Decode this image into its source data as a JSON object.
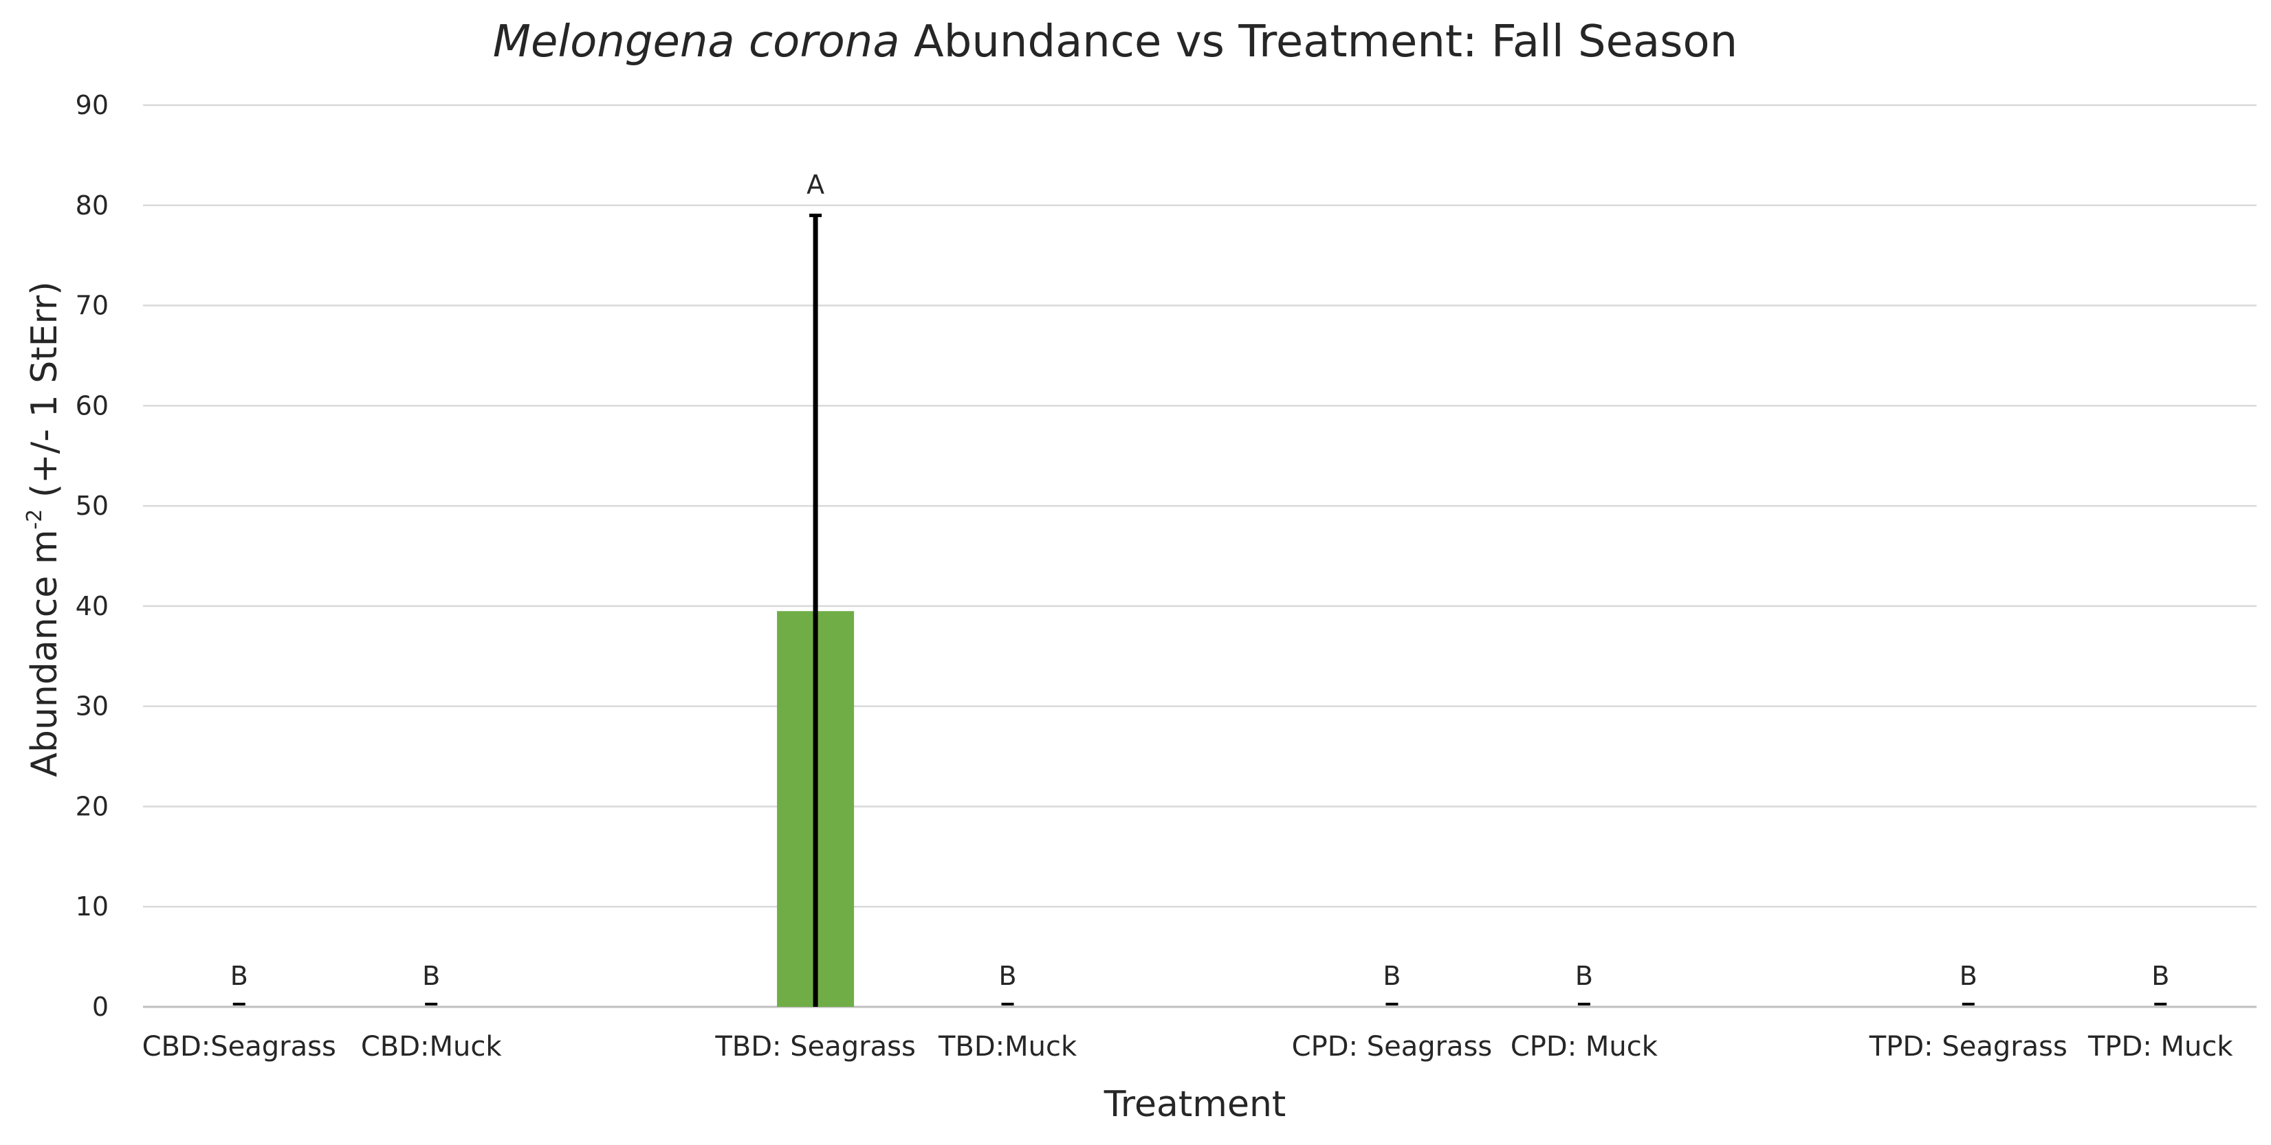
{
  "chart_data": {
    "type": "bar",
    "title_italic": "Melongena corona",
    "title_rest": " Abundance vs Treatment: Fall Season",
    "xlabel": "Treatment",
    "ylabel_main": "Abundance m",
    "ylabel_sup": "-2",
    "ylabel_tail": " (+/- 1 StErr)",
    "ylim": [
      0,
      90
    ],
    "yticks": [
      0,
      10,
      20,
      30,
      40,
      50,
      60,
      70,
      80,
      90
    ],
    "grid": true,
    "bar_color": "#70ad47",
    "categories": [
      {
        "label": "CBD:Seagrass",
        "value": 0,
        "err": 0,
        "sig": "B"
      },
      {
        "label": "CBD:Muck",
        "value": 0,
        "err": 0,
        "sig": "B"
      },
      {
        "label": "",
        "value": null,
        "err": null,
        "sig": ""
      },
      {
        "label": "TBD: Seagrass",
        "value": 39.5,
        "err": 39.5,
        "sig": "A"
      },
      {
        "label": "TBD:Muck",
        "value": 0,
        "err": 0,
        "sig": "B"
      },
      {
        "label": "",
        "value": null,
        "err": null,
        "sig": ""
      },
      {
        "label": "CPD: Seagrass",
        "value": 0,
        "err": 0,
        "sig": "B"
      },
      {
        "label": "CPD: Muck",
        "value": 0,
        "err": 0,
        "sig": "B"
      },
      {
        "label": "",
        "value": null,
        "err": null,
        "sig": ""
      },
      {
        "label": "TPD: Seagrass",
        "value": 0,
        "err": 0,
        "sig": "B"
      },
      {
        "label": "TPD: Muck",
        "value": 0,
        "err": 0,
        "sig": "B"
      }
    ]
  }
}
